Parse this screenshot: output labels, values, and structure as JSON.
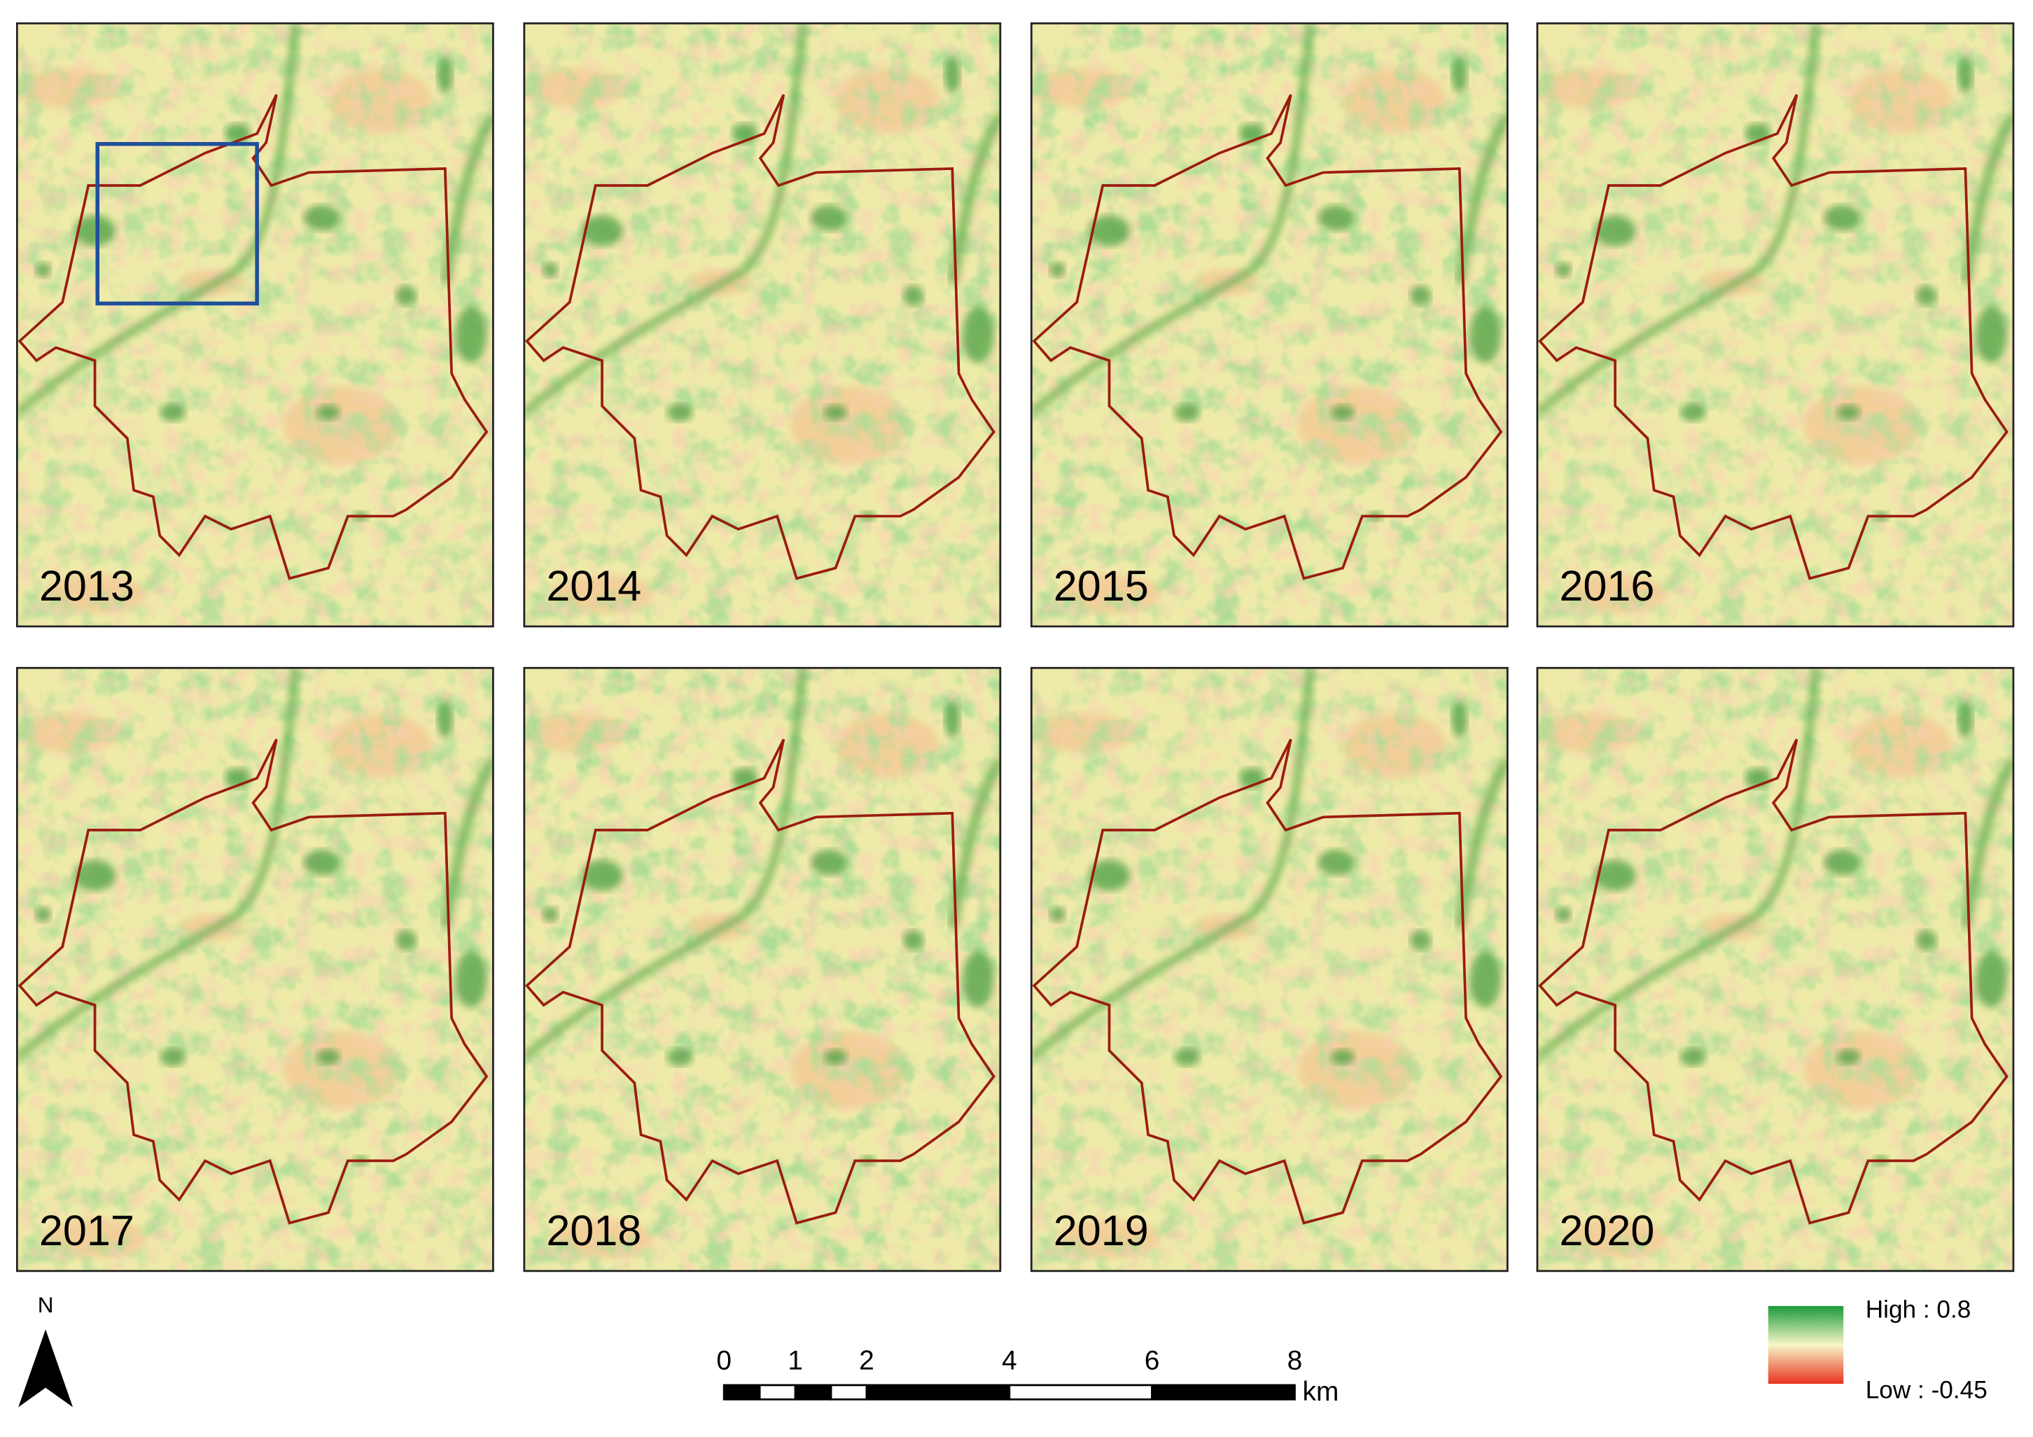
{
  "panels": [
    {
      "label": "2013"
    },
    {
      "label": "2014"
    },
    {
      "label": "2015"
    },
    {
      "label": "2016"
    },
    {
      "label": "2017"
    },
    {
      "label": "2018"
    },
    {
      "label": "2019"
    },
    {
      "label": "2020"
    }
  ],
  "north_arrow": {
    "label": "N"
  },
  "scale_bar": {
    "ticks": [
      0,
      1,
      2,
      4,
      6,
      8
    ],
    "unit": "km"
  },
  "legend": {
    "high": "High : 0.8",
    "low": "Low : -0.45"
  }
}
